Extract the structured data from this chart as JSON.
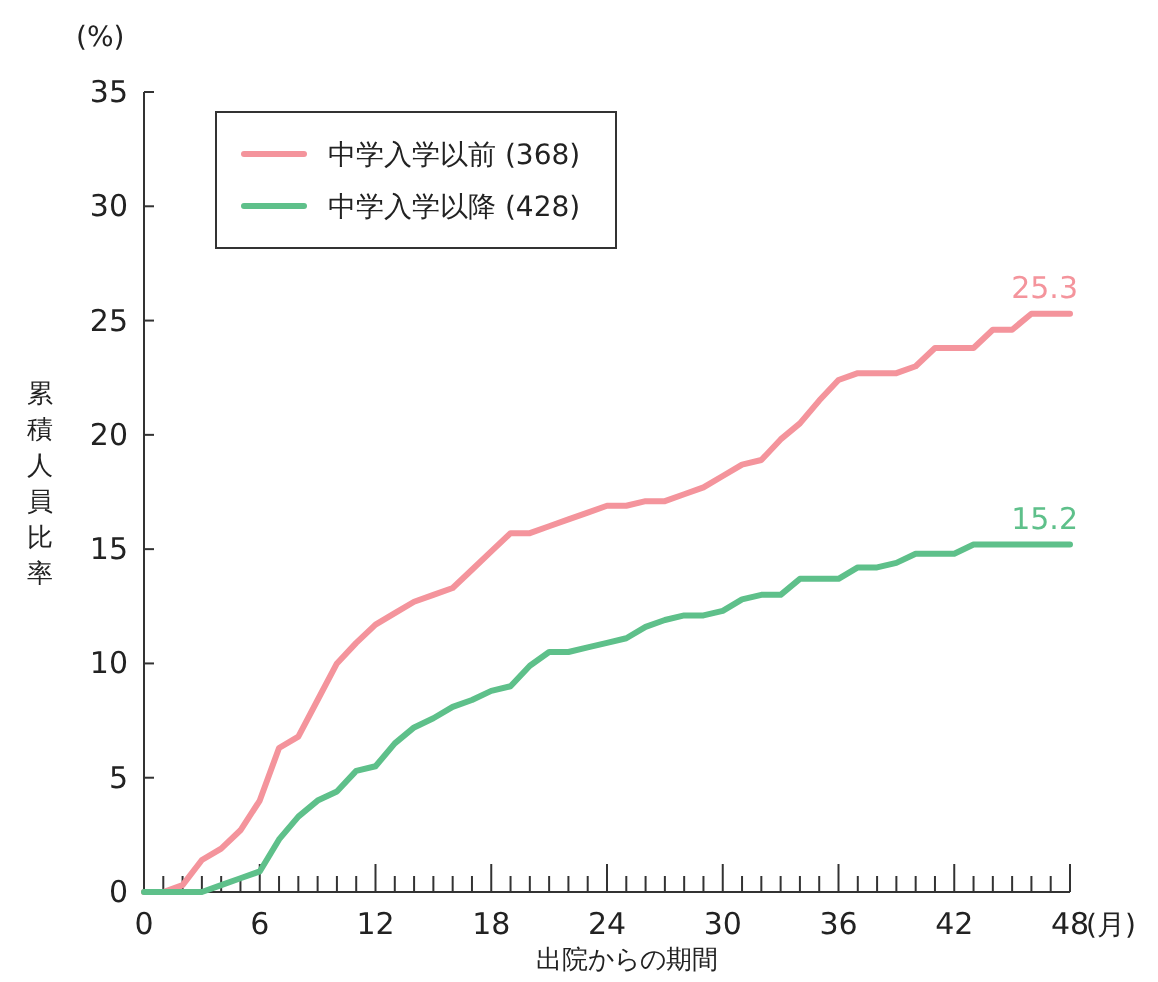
{
  "chart_data": {
    "type": "line",
    "xlabel": "出院からの期間",
    "ylabel": "累積人員比率",
    "annotations": [
      "(%)",
      "(月)",
      {
        "text": "25.3",
        "x": 48,
        "y": 25.3
      },
      {
        "text": "15.2",
        "x": 48,
        "y": 15.2
      }
    ],
    "x": [
      0,
      1,
      2,
      3,
      4,
      5,
      6,
      7,
      8,
      9,
      10,
      11,
      12,
      13,
      14,
      15,
      16,
      17,
      18,
      19,
      20,
      21,
      22,
      23,
      24,
      25,
      26,
      27,
      28,
      29,
      30,
      31,
      32,
      33,
      34,
      35,
      36,
      37,
      38,
      39,
      40,
      41,
      42,
      43,
      44,
      45,
      46,
      47,
      48
    ],
    "series": [
      {
        "name": "中学入学以前 (368)",
        "color": "#f4949c",
        "values": [
          0,
          0,
          0.3,
          1.4,
          1.9,
          2.7,
          4,
          6.3,
          6.8,
          8.4,
          10,
          10.9,
          11.7,
          12.2,
          12.7,
          13,
          13.3,
          14.1,
          14.9,
          15.7,
          15.7,
          16,
          16.3,
          16.6,
          16.9,
          16.9,
          17.1,
          17.1,
          17.4,
          17.7,
          18.2,
          18.7,
          18.9,
          19.8,
          20.5,
          21.5,
          22.4,
          22.7,
          22.7,
          22.7,
          23,
          23.8,
          23.8,
          23.8,
          24.6,
          24.6,
          25.3,
          25.3,
          25.3
        ]
      },
      {
        "name": "中学入学以降 (428)",
        "color": "#5ec08a",
        "values": [
          0,
          0,
          0,
          0,
          0.3,
          0.6,
          0.9,
          2.3,
          3.3,
          4,
          4.4,
          5.3,
          5.5,
          6.5,
          7.2,
          7.6,
          8.1,
          8.4,
          8.8,
          9,
          9.9,
          10.5,
          10.5,
          10.7,
          10.9,
          11.1,
          11.6,
          11.9,
          12.1,
          12.1,
          12.3,
          12.8,
          13,
          13,
          13.7,
          13.7,
          13.7,
          14.2,
          14.2,
          14.4,
          14.8,
          14.8,
          14.8,
          15.2,
          15.2,
          15.2,
          15.2,
          15.2,
          15.2
        ]
      }
    ],
    "xlim": [
      0,
      48
    ],
    "ylim": [
      0,
      35
    ],
    "xticks": [
      0,
      {
        "value": 1,
        "label": null
      },
      {
        "value": 2,
        "label": null
      },
      {
        "value": 3,
        "label": null
      },
      {
        "value": 4,
        "label": null
      },
      {
        "value": 5,
        "label": null
      },
      6,
      {
        "value": 7,
        "label": null
      },
      {
        "value": 8,
        "label": null
      },
      {
        "value": 9,
        "label": null
      },
      {
        "value": 10,
        "label": null
      },
      {
        "value": 11,
        "label": null
      },
      12,
      {
        "value": 13,
        "label": null
      },
      {
        "value": 14,
        "label": null
      },
      {
        "value": 15,
        "label": null
      },
      {
        "value": 16,
        "label": null
      },
      {
        "value": 17,
        "label": null
      },
      18,
      {
        "value": 19,
        "label": null
      },
      {
        "value": 20,
        "label": null
      },
      {
        "value": 21,
        "label": null
      },
      {
        "value": 22,
        "label": null
      },
      {
        "value": 23,
        "label": null
      },
      24,
      {
        "value": 25,
        "label": null
      },
      {
        "value": 26,
        "label": null
      },
      {
        "value": 27,
        "label": null
      },
      {
        "value": 28,
        "label": null
      },
      {
        "value": 29,
        "label": null
      },
      30,
      {
        "value": 31,
        "label": null
      },
      {
        "value": 32,
        "label": null
      },
      {
        "value": 33,
        "label": null
      },
      {
        "value": 34,
        "label": null
      },
      {
        "value": 35,
        "label": null
      },
      36,
      {
        "value": 37,
        "label": null
      },
      {
        "value": 38,
        "label": null
      },
      {
        "value": 39,
        "label": null
      },
      {
        "value": 40,
        "label": null
      },
      {
        "value": 41,
        "label": null
      },
      42,
      {
        "value": 43,
        "label": null
      },
      {
        "value": 44,
        "label": null
      },
      {
        "value": 45,
        "label": null
      },
      {
        "value": 46,
        "label": null
      },
      {
        "value": 47,
        "label": null
      },
      48
    ],
    "yticks": [
      0,
      5,
      10,
      15,
      20,
      25,
      30,
      35
    ],
    "legend": "top left",
    "grid": false,
    "marker": "none",
    "line_style": "solid"
  }
}
